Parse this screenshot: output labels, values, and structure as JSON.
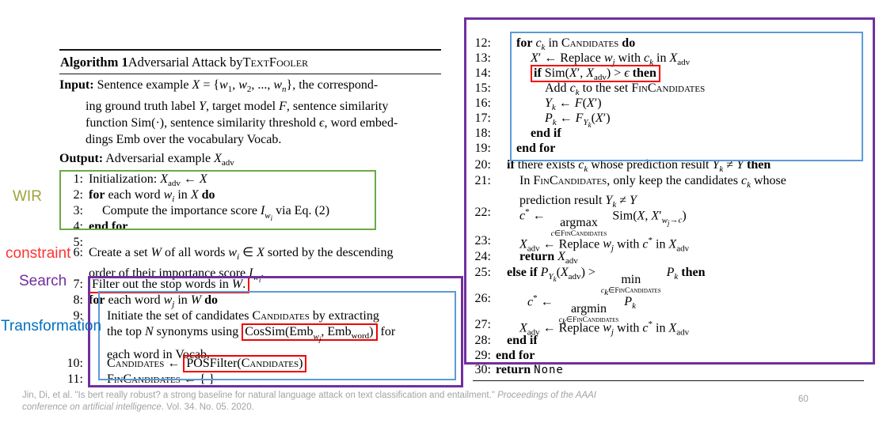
{
  "colors": {
    "highlight_green": "#6aaa45",
    "highlight_purple": "#7030a0",
    "highlight_blue": "#5b9bd5",
    "highlight_red": "#f20000",
    "label_wir": "#9fa53d",
    "label_constraint": "#ff3232",
    "label_search": "#7030a0",
    "label_transformation": "#0070c0",
    "footer_gray": "#a3a3a3"
  },
  "labels": {
    "wir": "WIR",
    "constraint": "constraint",
    "search": "Search",
    "transformation": "Transformation"
  },
  "algorithm": {
    "title_html": "<b>Algorithm 1</b> Adversarial Attack by <span class=\"sc\">TextFooler</span>",
    "input_html": "<b>Input:</b> Sentence example <i>X</i> = {<i>w</i><sub>1</sub>, <i>w</i><sub>2</sub>, ..., <i>w<sub>n</sub></i>}, the correspond-<br>ing ground truth label <i>Y</i>, target model <i>F</i>, sentence similarity<br>function Sim(&#183;), sentence similarity threshold <i>&#1013;</i>, word embed-<br>dings Emb over the vocabulary Vocab.",
    "output_html": "<b>Output:</b> Adversarial example <i>X</i><sub>adv</sub>",
    "left_lines": [
      {
        "n": "1:",
        "html": "Initialization: <i>X</i><sub>adv</sub> &#8592; <i>X</i>"
      },
      {
        "n": "2:",
        "html": "<b>for</b> each word <i>w<sub>i</sub></i> in <i>X</i> <b>do</b>"
      },
      {
        "n": "3:",
        "html": "Compute the importance score <i>I<sub>w<sub>i</sub></sub></i> via Eq. (2)"
      },
      {
        "n": "4:",
        "html": "<b>end for</b>"
      },
      {
        "n": "5:",
        "html": ""
      },
      {
        "n": "6:",
        "html": "Create a set <i>W</i> of all words <i>w<sub>i</sub></i> &#8712; <i>X</i> sorted by the descending<br>order of their importance score <i>I<sub>w<sub>i</sub></sub></i>."
      },
      {
        "n": "7:",
        "html": "<span class=\"rbox\">Filter out the stop words in <i>W</i>.</span>"
      },
      {
        "n": "8:",
        "html": "<b>for</b> each word <i>w<sub>j</sub></i> in <i>W</i> <b>do</b>"
      },
      {
        "n": "9:",
        "html": "Initiate the set of candidates <span class=\"sc\">Candidates</span> by extracting<br>the top <i>N</i> synonyms using <span class=\"rbox\">CosSim(Emb<sub><i>w<sub>j</sub></i></sub>, Emb<sub>word</sub>)</span> for<br>each word in Vocab."
      },
      {
        "n": "10:",
        "html": "<span class=\"sc\">Candidates</span> &#8592; <span class=\"rbox\">POSFilter(<span class=\"sc\">Candidates</span>)</span>"
      },
      {
        "n": "11:",
        "html": "<span class=\"sc\">FinCandidates</span> &#8592; { }"
      }
    ],
    "right_lines": [
      {
        "n": "12:",
        "html": "<b>for</b> <i>c<sub>k</sub></i> in <span class=\"sc\">Candidates</span> <b>do</b>"
      },
      {
        "n": "13:",
        "html": "<i>X</i>&#8242; &#8592; Replace <i>w<sub>j</sub></i> with <i>c<sub>k</sub></i> in <i>X</i><sub>adv</sub>"
      },
      {
        "n": "14:",
        "html": "<span class=\"rbox\"><b>if</b> Sim(<i>X</i>&#8242;, <i>X</i><sub>adv</sub>) &gt; <i>&#1013;</i> <b>then</b></span>"
      },
      {
        "n": "15:",
        "html": "Add <i>c<sub>k</sub></i> to the set <span class=\"sc\">FinCandidates</span>"
      },
      {
        "n": "16:",
        "html": "<i>Y<sub>k</sub></i> &#8592; <i>F</i>(<i>X</i>&#8242;)"
      },
      {
        "n": "17:",
        "html": "<i>P<sub>k</sub></i> &#8592; <i>F<sub>Y<sub>k</sub></sub></i>(<i>X</i>&#8242;)"
      },
      {
        "n": "18:",
        "html": "<b>end if</b>"
      },
      {
        "n": "19:",
        "html": "<b>end for</b>"
      },
      {
        "n": "20:",
        "html": "<b>if</b> there exists <i>c<sub>k</sub></i> whose prediction result <i>Y<sub>k</sub></i> &#8800; <i>Y</i> <b>then</b>"
      },
      {
        "n": "21:",
        "html": "In <span class=\"sc\">FinCandidates</span>, only keep the candidates <i>c<sub>k</sub></i> whose<br>prediction result <i>Y<sub>k</sub></i> &#8800; <i>Y</i>"
      },
      {
        "n": "22:",
        "html": "<i>c</i><sup>*</sup> &#8592; <span class=\"mop\"><span>argmax</span><span class=\"mun\"><i>c</i>&#8712;<span class=\"sc\">FinCandidates</span></span></span> Sim(<i>X</i>, <i>X</i>&#8242;<sub><i>w<sub>j</sub></i>&#8594;<i>c</i></sub>)"
      },
      {
        "n": "23:",
        "html": "<i>X</i><sub>adv</sub> &#8592; Replace <i>w<sub>j</sub></i> with <i>c</i><sup>*</sup> in <i>X</i><sub>adv</sub>"
      },
      {
        "n": "24:",
        "html": "<b>return</b> <i>X</i><sub>adv</sub>"
      },
      {
        "n": "25:",
        "html": "<b>else if</b> <i>P<sub>Y<sub>k</sub></sub></i>(<i>X</i><sub>adv</sub>) &gt; <span class=\"mop\"><span>min</span><span class=\"mun\"><i>c<sub>k</sub></i>&#8712;<span class=\"sc\">FinCandidates</span></span></span> <i>P<sub>k</sub></i> <b>then</b>"
      },
      {
        "n": "26:",
        "html": "<i>c</i><sup>*</sup> &#8592; <span class=\"mop\"><span>argmin</span><span class=\"mun\"><i>c<sub>k</sub></i>&#8712;<span class=\"sc\">FinCandidates</span></span></span> <i>P<sub>k</sub></i>"
      },
      {
        "n": "27:",
        "html": "<i>X</i><sub>adv</sub> &#8592; Replace <i>w<sub>j</sub></i> with <i>c</i><sup>*</sup> in <i>X</i><sub>adv</sub>"
      },
      {
        "n": "28:",
        "html": "<b>end if</b>"
      },
      {
        "n": "29:",
        "html": "<b>end for</b>"
      },
      {
        "n": "30:",
        "html": "<b>return</b> <span class=\"mono\">None</span>"
      }
    ]
  },
  "footer": {
    "citation_html": "Jin, Di, et al. \"Is bert really robust? a strong baseline for natural language attack on text classification and entailment.\" <i>Proceedings of the AAAI<br>conference on artificial intelligence</i>. Vol. 34. No. 05. 2020.",
    "page_number": "60"
  }
}
